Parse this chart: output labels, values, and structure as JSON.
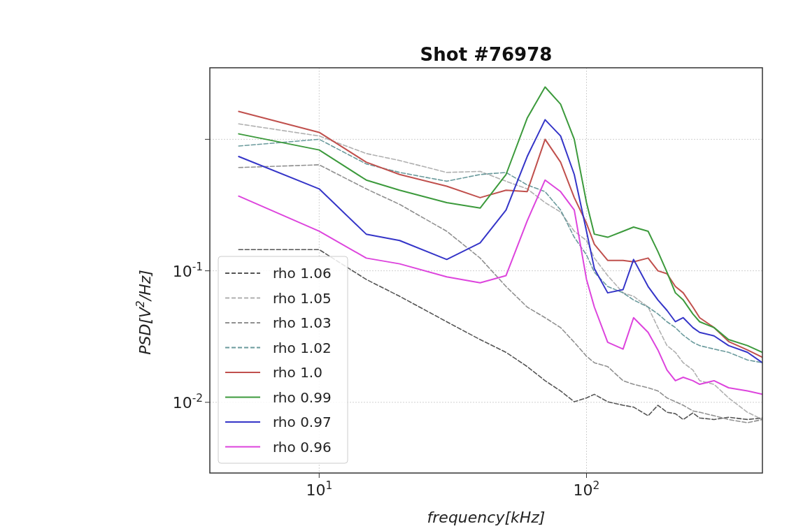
{
  "chart_data": {
    "type": "line",
    "title": "Shot #76978",
    "xlabel": "frequency[kHz]",
    "ylabel": "PSD[V$^{2}$/Hz]",
    "log": "xy",
    "grid": true,
    "legend": "bottom left",
    "xlim": [
      3.9,
      455
    ],
    "ylim": [
      0.0029,
      3.5
    ],
    "xticks": [
      {
        "value": 10,
        "label": "10$^{1}$"
      },
      {
        "value": 100,
        "label": "10$^{2}$"
      }
    ],
    "yticks": [
      {
        "value": 0.01,
        "label": "10$^{-2}$"
      },
      {
        "value": 0.1,
        "label": "10$^{-1}$"
      },
      {
        "value": 1,
        "label": null
      }
    ],
    "x": [
      5,
      10,
      15,
      20,
      30,
      40,
      50,
      60,
      70,
      80,
      90,
      100,
      107,
      120,
      137,
      150,
      170,
      185,
      200,
      215,
      230,
      250,
      265,
      300,
      340,
      400,
      455
    ],
    "series": [
      {
        "name": "rho 1.06",
        "color": "#555555",
        "line_style": "dashed",
        "values": [
          0.145,
          0.145,
          0.086,
          0.064,
          0.041,
          0.03,
          0.024,
          0.0187,
          0.0146,
          0.0122,
          0.0101,
          0.0108,
          0.0115,
          0.0101,
          0.0095,
          0.0092,
          0.0079,
          0.0095,
          0.0084,
          0.0082,
          0.0074,
          0.0083,
          0.0076,
          0.0074,
          0.0077,
          0.0074,
          0.0076
        ]
      },
      {
        "name": "rho 1.05",
        "color": "#b0b0b0",
        "line_style": "dashed",
        "values": [
          1.31,
          1.06,
          0.78,
          0.69,
          0.56,
          0.57,
          0.48,
          0.42,
          0.33,
          0.28,
          0.2,
          0.17,
          0.125,
          0.092,
          0.068,
          0.064,
          0.053,
          0.037,
          0.027,
          0.024,
          0.02,
          0.0176,
          0.0146,
          0.0137,
          0.0108,
          0.0084,
          0.0074
        ]
      },
      {
        "name": "rho 1.03",
        "color": "#909090",
        "line_style": "dashed",
        "values": [
          0.61,
          0.64,
          0.42,
          0.32,
          0.2,
          0.125,
          0.076,
          0.053,
          0.044,
          0.037,
          0.0286,
          0.0224,
          0.02,
          0.0187,
          0.0146,
          0.0137,
          0.0129,
          0.0122,
          0.0108,
          0.0101,
          0.0095,
          0.0086,
          0.0084,
          0.0079,
          0.0074,
          0.007,
          0.0074
        ]
      },
      {
        "name": "rho 1.02",
        "color": "#6a9a9c",
        "line_style": "dashed",
        "values": [
          0.89,
          1.0,
          0.65,
          0.56,
          0.48,
          0.54,
          0.56,
          0.45,
          0.4,
          0.29,
          0.18,
          0.132,
          0.0975,
          0.076,
          0.068,
          0.06,
          0.053,
          0.047,
          0.041,
          0.037,
          0.0324,
          0.0286,
          0.027,
          0.0254,
          0.024,
          0.021,
          0.02
        ]
      },
      {
        "name": "rho 1.0",
        "color": "#c0504d",
        "line_style": "solid",
        "values": [
          1.63,
          1.13,
          0.67,
          0.54,
          0.44,
          0.36,
          0.41,
          0.4,
          1.0,
          0.67,
          0.36,
          0.23,
          0.159,
          0.12,
          0.12,
          0.117,
          0.125,
          0.1,
          0.095,
          0.076,
          0.068,
          0.053,
          0.044,
          0.037,
          0.029,
          0.025,
          0.022
        ]
      },
      {
        "name": "rho 0.99",
        "color": "#3c9a3c",
        "line_style": "solid",
        "values": [
          1.1,
          0.83,
          0.49,
          0.41,
          0.33,
          0.3,
          0.54,
          1.45,
          2.5,
          1.85,
          1.0,
          0.33,
          0.19,
          0.18,
          0.2,
          0.215,
          0.2,
          0.14,
          0.0975,
          0.068,
          0.06,
          0.047,
          0.041,
          0.037,
          0.03,
          0.027,
          0.024
        ]
      },
      {
        "name": "rho 0.97",
        "color": "#3535c8",
        "line_style": "solid",
        "values": [
          0.74,
          0.42,
          0.19,
          0.17,
          0.122,
          0.163,
          0.29,
          0.74,
          1.41,
          1.06,
          0.54,
          0.2,
          0.104,
          0.068,
          0.072,
          0.122,
          0.076,
          0.06,
          0.05,
          0.041,
          0.044,
          0.037,
          0.034,
          0.032,
          0.027,
          0.024,
          0.02
        ]
      },
      {
        "name": "rho 0.96",
        "color": "#dd44dd",
        "line_style": "solid",
        "values": [
          0.37,
          0.2,
          0.125,
          0.113,
          0.09,
          0.081,
          0.092,
          0.24,
          0.49,
          0.4,
          0.29,
          0.086,
          0.053,
          0.0286,
          0.0254,
          0.044,
          0.034,
          0.025,
          0.0176,
          0.0146,
          0.0155,
          0.0146,
          0.0137,
          0.0146,
          0.0129,
          0.0122,
          0.0115
        ]
      }
    ]
  }
}
